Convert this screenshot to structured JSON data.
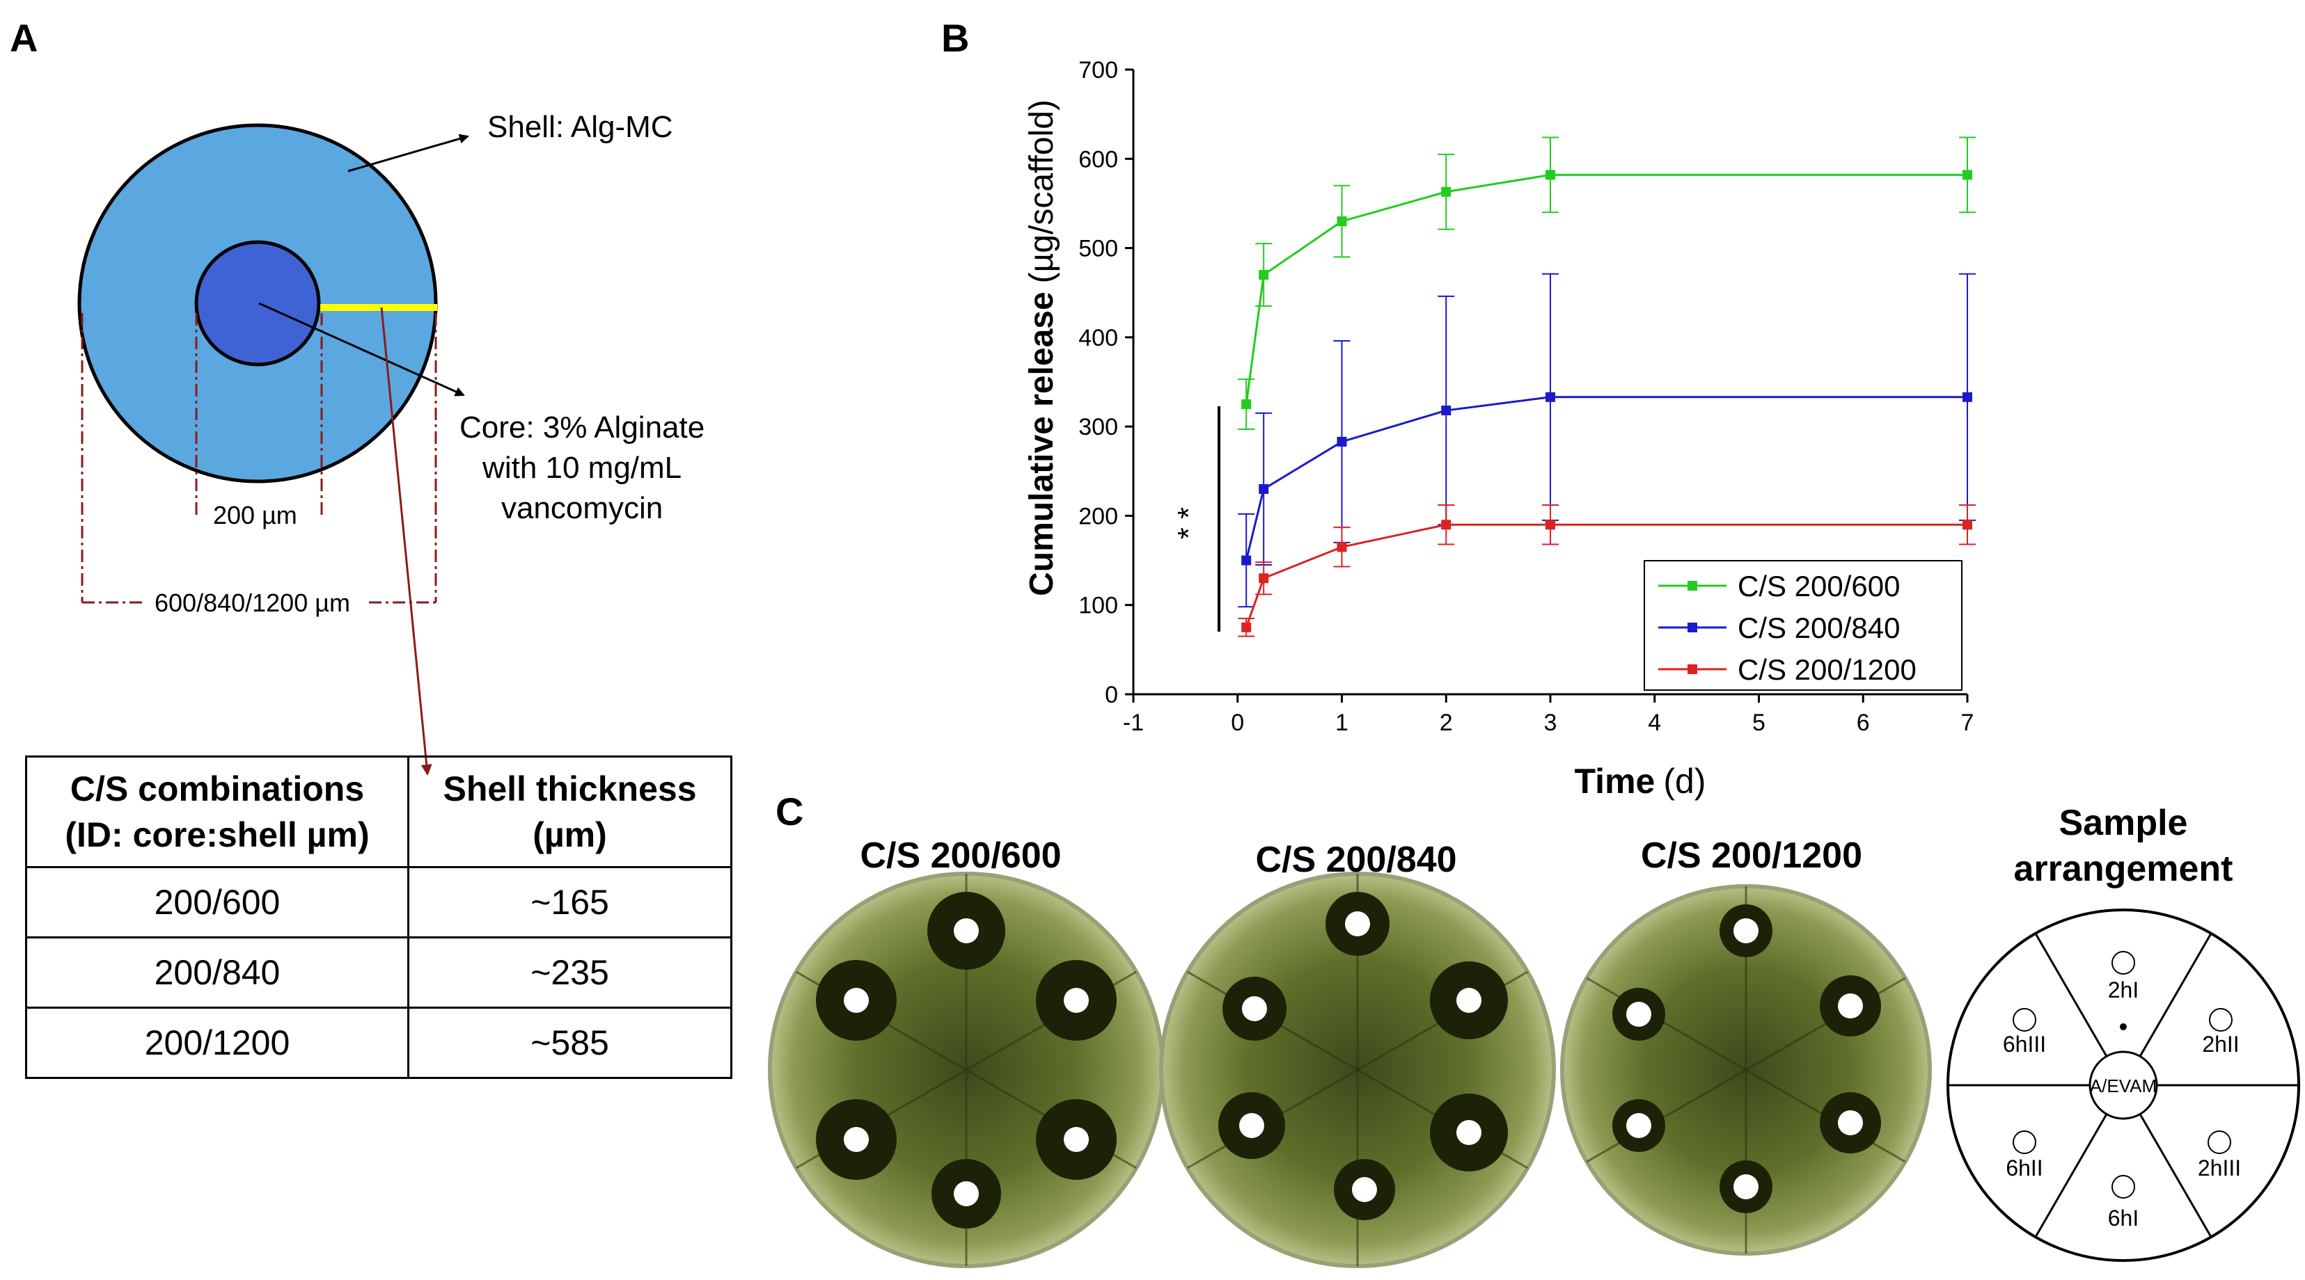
{
  "panels": {
    "a": "A",
    "b": "B",
    "c": "C"
  },
  "panelA": {
    "shell_label": "Shell: Alg-MC",
    "core_label_lines": [
      "Core: 3% Alginate",
      "with 10 mg/mL",
      "vancomycin"
    ],
    "core_diameter": "200 µm",
    "outer_diameter": "600/840/1200 µm",
    "table": {
      "headers": [
        [
          "C/S combinations",
          "(ID: core:shell µm)"
        ],
        [
          "Shell thickness",
          "(µm)"
        ]
      ],
      "rows": [
        [
          "200/600",
          "~165"
        ],
        [
          "200/840",
          "~235"
        ],
        [
          "200/1200",
          "~585"
        ]
      ]
    },
    "colors": {
      "shell": "#5ba8e0",
      "core": "#3f63d4",
      "thickness_bar": "#ffff00",
      "dimension_lines": "#8b1a1a"
    }
  },
  "chart_data": {
    "type": "line",
    "xlabel": "Time (d)",
    "xlabel_bold": "Time",
    "xlabel_unit": "(d)",
    "ylabel": "Cumulative release (µg/scaffold)",
    "ylabel_bold": "Cumulative release",
    "ylabel_unit": "(µg/scaffold)",
    "xlim": [
      -1,
      7
    ],
    "ylim": [
      0,
      700
    ],
    "xticks": [
      -1,
      0,
      1,
      2,
      3,
      4,
      5,
      6,
      7
    ],
    "yticks": [
      0,
      100,
      200,
      300,
      400,
      500,
      600,
      700
    ],
    "x": [
      0.083,
      0.25,
      1,
      2,
      3,
      7
    ],
    "series": [
      {
        "name": "C/S 200/600",
        "color": "#22cc22",
        "values": [
          325,
          470,
          530,
          563,
          582,
          582
        ],
        "errors": [
          28,
          35,
          40,
          42,
          42,
          42
        ]
      },
      {
        "name": "C/S 200/840",
        "color": "#1a1acc",
        "values": [
          150,
          230,
          283,
          318,
          333,
          333
        ],
        "errors": [
          52,
          85,
          113,
          128,
          138,
          138
        ]
      },
      {
        "name": "C/S 200/1200",
        "color": "#dd2222",
        "values": [
          75,
          130,
          165,
          190,
          190,
          190
        ],
        "errors": [
          10,
          18,
          22,
          22,
          22,
          22
        ]
      }
    ],
    "significance": "* *",
    "legend_position": "bottom-right"
  },
  "panelC": {
    "plates": [
      {
        "title": "C/S 200/600"
      },
      {
        "title": "C/S 200/840"
      },
      {
        "title": "C/S 200/1200"
      }
    ],
    "arrangement": {
      "title_lines": [
        "Sample",
        "arrangement"
      ],
      "center": "A/EVAM",
      "positions": [
        "2hI",
        "2hII",
        "2hIII",
        "6hI",
        "6hII",
        "6hIII"
      ]
    }
  }
}
